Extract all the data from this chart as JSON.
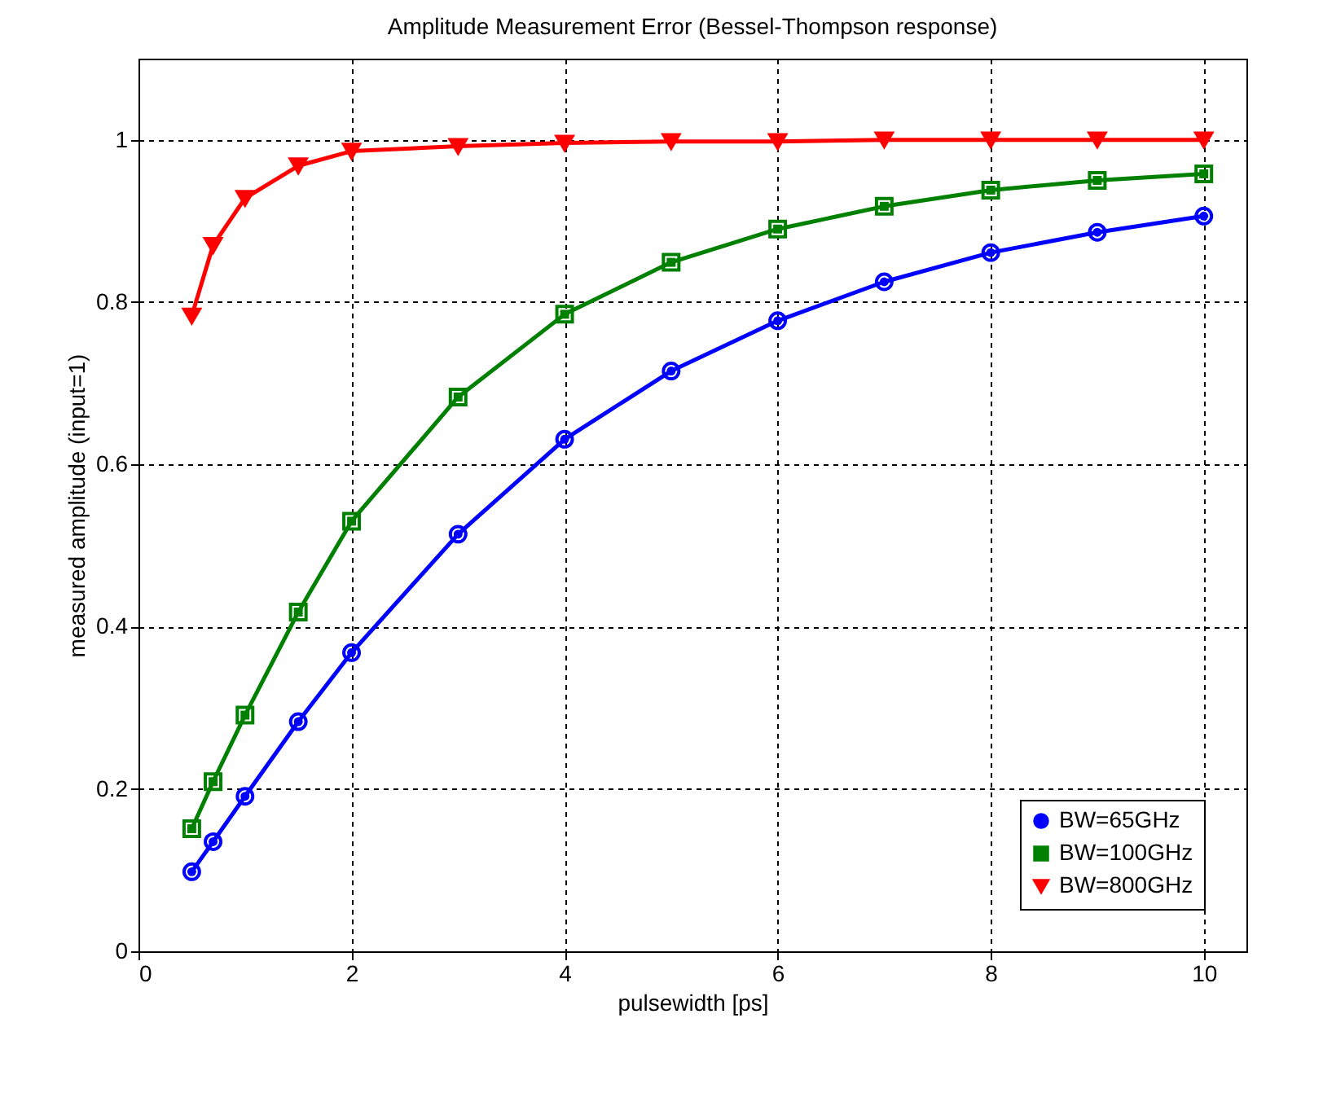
{
  "chart_data": {
    "type": "line",
    "title": "Amplitude Measurement Error (Bessel-Thompson response)",
    "xlabel": "pulsewidth [ps]",
    "ylabel": "measured amplitude (input=1)",
    "x": [
      0.5,
      0.7,
      1,
      1.5,
      2,
      3,
      4,
      5,
      6,
      7,
      8,
      9,
      10
    ],
    "series": [
      {
        "name": "BW=65GHz",
        "color": "#0000ff",
        "marker": "circle",
        "values": [
          0.098,
          0.135,
          0.191,
          0.283,
          0.368,
          0.514,
          0.631,
          0.715,
          0.777,
          0.825,
          0.861,
          0.886,
          0.906
        ]
      },
      {
        "name": "BW=100GHz",
        "color": "#008000",
        "marker": "square",
        "values": [
          0.151,
          0.209,
          0.291,
          0.418,
          0.53,
          0.683,
          0.785,
          0.849,
          0.89,
          0.918,
          0.938,
          0.95,
          0.958
        ]
      },
      {
        "name": "BW=800GHz",
        "color": "#ff0000",
        "marker": "triangle",
        "values": [
          0.783,
          0.87,
          0.928,
          0.968,
          0.986,
          0.992,
          0.996,
          0.998,
          0.998,
          1,
          1,
          1,
          1
        ]
      }
    ],
    "xlim": [
      0,
      10.4
    ],
    "xticks": [
      0,
      2,
      4,
      6,
      8,
      10
    ],
    "ylim": [
      0,
      1.1
    ],
    "yticks": [
      0,
      0.2,
      0.4,
      0.6,
      0.8,
      1
    ],
    "grid": true,
    "legend": "bottom right",
    "line_style": "solid"
  }
}
